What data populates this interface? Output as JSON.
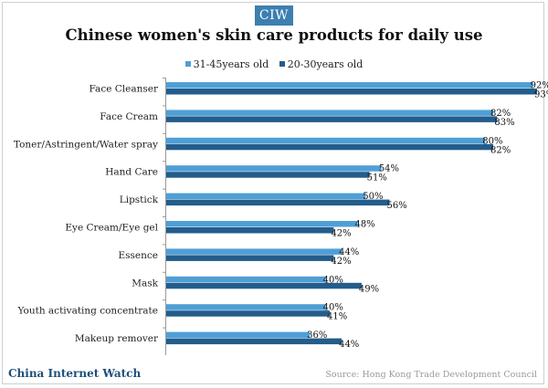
{
  "header": {
    "logo_text": "CIW"
  },
  "chart_data": {
    "type": "bar",
    "orientation": "horizontal",
    "title": "Chinese women's skin care products for daily use",
    "categories": [
      "Face Cleanser",
      "Face Cream",
      "Toner/Astringent/Water spray",
      "Hand Care",
      "Lipstick",
      "Eye Cream/Eye gel",
      "Essence",
      "Mask",
      "Youth activating concentrate",
      "Makeup remover"
    ],
    "series": [
      {
        "name": "31-45years old",
        "color": "#4f9fd6",
        "values": [
          92,
          82,
          80,
          54,
          50,
          48,
          44,
          40,
          40,
          36
        ]
      },
      {
        "name": "20-30years old",
        "color": "#235d8c",
        "values": [
          93,
          83,
          82,
          51,
          56,
          42,
          42,
          49,
          41,
          44
        ]
      }
    ],
    "value_suffix": "%",
    "xlim": [
      0,
      100
    ],
    "grid": false,
    "legend": "top-center"
  },
  "footer": {
    "brand": "China Internet Watch",
    "source": "Source: Hong Kong Trade Development Council"
  }
}
